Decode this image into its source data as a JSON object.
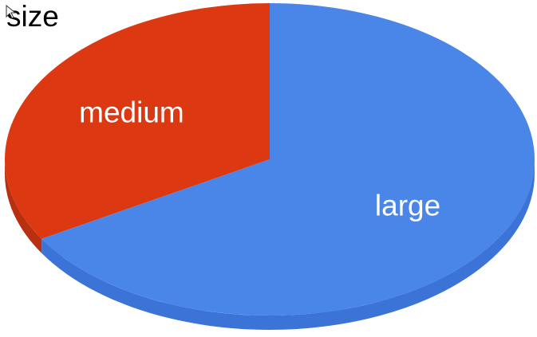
{
  "chart_data": {
    "type": "pie",
    "title": "size",
    "style": "3d",
    "categories": [
      "medium",
      "large"
    ],
    "values": [
      33.5,
      66.5
    ],
    "unit": "percent",
    "slice_labels": [
      "medium",
      "large"
    ],
    "colors": [
      "#dc3912",
      "#4a86e8"
    ],
    "side_colors": [
      "#b8300f",
      "#3c73d6"
    ],
    "legend": "none"
  },
  "icons": {
    "cursor": "cursor-icon"
  }
}
